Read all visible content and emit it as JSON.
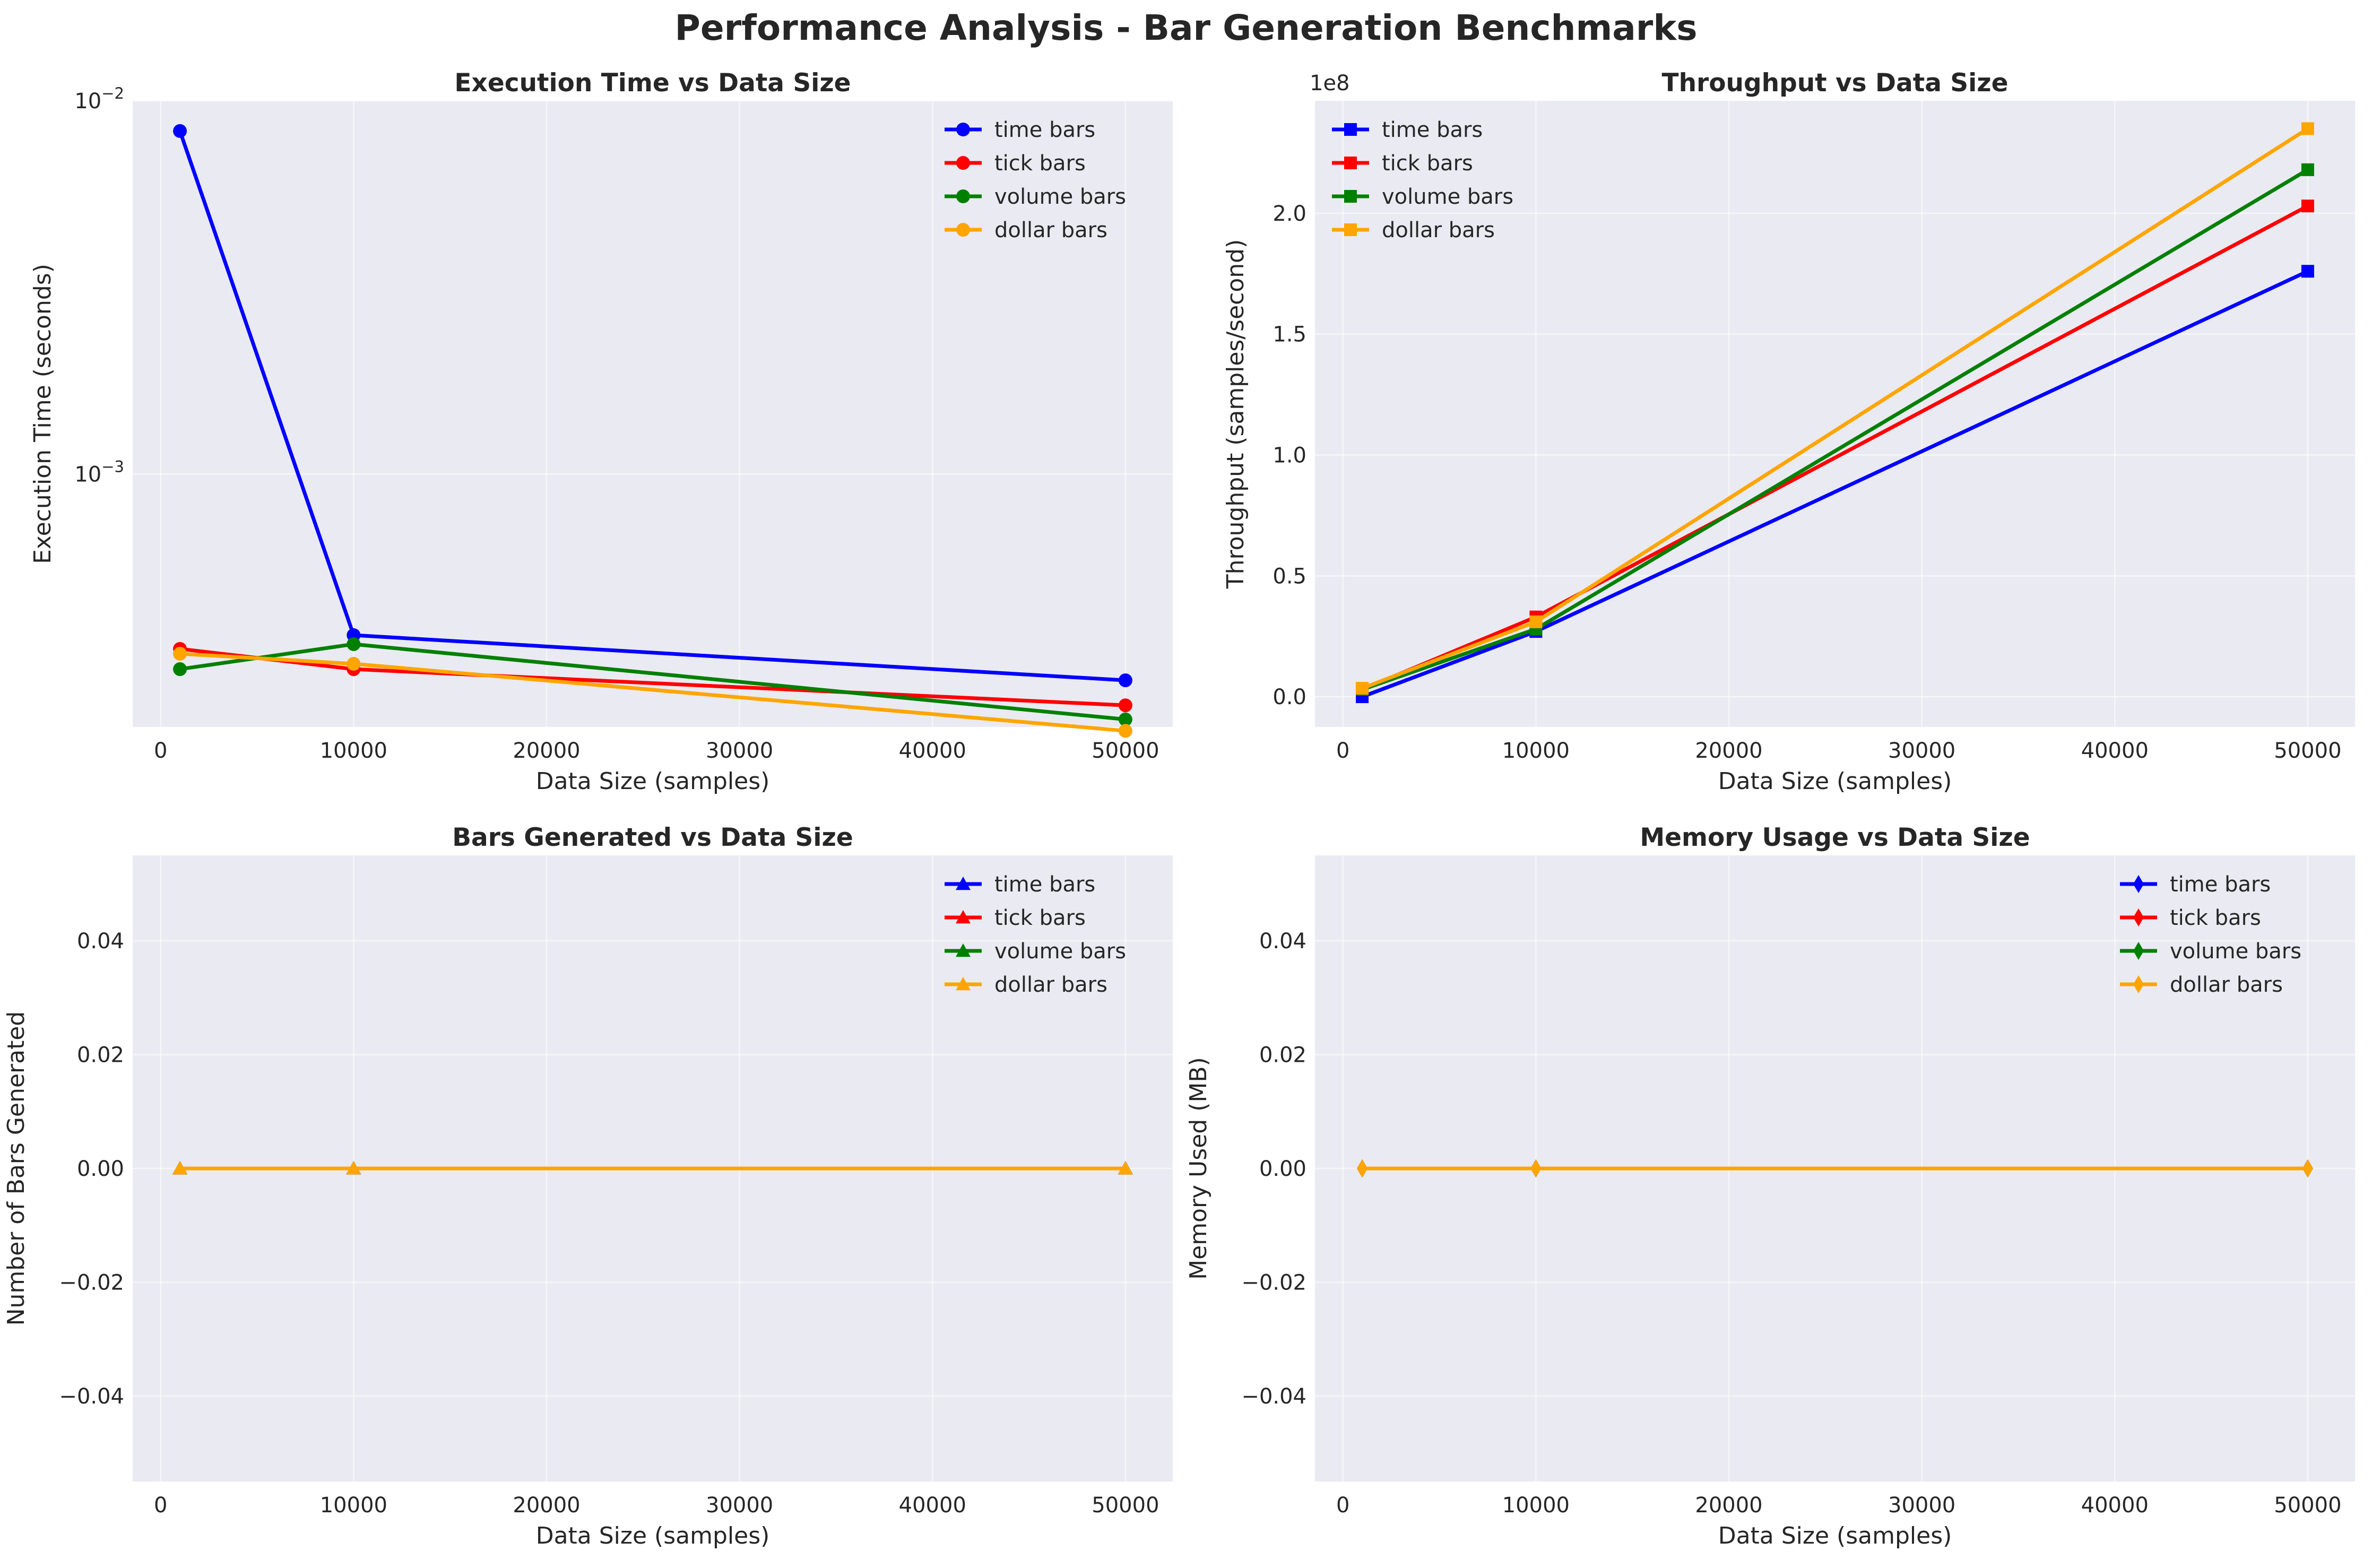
{
  "figure_title": "Performance Analysis - Bar Generation Benchmarks",
  "colors": {
    "background": "#ffffff",
    "axes_face": "#eaeaf2",
    "grid": "#ffffff",
    "text": "#262626",
    "time bars": "#0000ff",
    "tick bars": "#ff0000",
    "volume bars": "#008000",
    "dollar bars": "#ffa500"
  },
  "chart_data": [
    {
      "type": "line",
      "title": "Execution Time vs Data Size",
      "xlabel": "Data Size (samples)",
      "ylabel": "Execution Time (seconds)",
      "yscale": "log",
      "xlim": [
        -1450,
        52450
      ],
      "ylim": [
        0.00021,
        0.01
      ],
      "xticks": [
        0,
        10000,
        20000,
        30000,
        40000,
        50000
      ],
      "yticks": [
        0.001,
        0.01
      ],
      "ytick_labels": [
        {
          "base": "10",
          "exp": "−3"
        },
        {
          "base": "10",
          "exp": "−2"
        }
      ],
      "marker": "circle",
      "legend": "top-right",
      "grid": true,
      "x": [
        1000,
        10000,
        50000
      ],
      "series": [
        {
          "name": "time bars",
          "values": [
            0.0083,
            0.00037,
            0.00028
          ]
        },
        {
          "name": "tick bars",
          "values": [
            0.00034,
            0.0003,
            0.00024
          ]
        },
        {
          "name": "volume bars",
          "values": [
            0.0003,
            0.00035,
            0.00022
          ]
        },
        {
          "name": "dollar bars",
          "values": [
            0.00033,
            0.00031,
            0.000205
          ]
        }
      ]
    },
    {
      "type": "line",
      "title": "Throughput vs Data Size",
      "xlabel": "Data Size (samples)",
      "ylabel": "Throughput (samples/second)",
      "offset_text": "1e8",
      "yscale": "linear",
      "xlim": [
        -1450,
        52450
      ],
      "ylim": [
        -12500000,
        246500000
      ],
      "xticks": [
        0,
        10000,
        20000,
        30000,
        40000,
        50000
      ],
      "yticks": [
        0,
        50000000,
        100000000,
        150000000,
        200000000
      ],
      "ytick_labels": [
        "0.0",
        "0.5",
        "1.0",
        "1.5",
        "2.0"
      ],
      "marker": "square",
      "legend": "top-left",
      "grid": true,
      "x": [
        1000,
        10000,
        50000
      ],
      "series": [
        {
          "name": "time bars",
          "values": [
            0,
            27000000,
            176000000
          ]
        },
        {
          "name": "tick bars",
          "values": [
            3000000,
            33000000,
            203000000
          ]
        },
        {
          "name": "volume bars",
          "values": [
            3000000,
            28000000,
            218000000
          ]
        },
        {
          "name": "dollar bars",
          "values": [
            3500000,
            31000000,
            235000000
          ]
        }
      ]
    },
    {
      "type": "line",
      "title": "Bars Generated vs Data Size",
      "xlabel": "Data Size (samples)",
      "ylabel": "Number of Bars Generated",
      "yscale": "linear",
      "xlim": [
        -1450,
        52450
      ],
      "ylim": [
        -0.055,
        0.055
      ],
      "xticks": [
        0,
        10000,
        20000,
        30000,
        40000,
        50000
      ],
      "yticks": [
        -0.04,
        -0.02,
        0,
        0.02,
        0.04
      ],
      "ytick_labels": [
        "−0.04",
        "−0.02",
        "0.00",
        "0.02",
        "0.04"
      ],
      "marker": "triangle",
      "legend": "top-right",
      "grid": true,
      "x": [
        1000,
        10000,
        50000
      ],
      "series": [
        {
          "name": "time bars",
          "values": [
            0,
            0,
            0
          ]
        },
        {
          "name": "tick bars",
          "values": [
            0,
            0,
            0
          ]
        },
        {
          "name": "volume bars",
          "values": [
            0,
            0,
            0
          ]
        },
        {
          "name": "dollar bars",
          "values": [
            0,
            0,
            0
          ]
        }
      ]
    },
    {
      "type": "line",
      "title": "Memory Usage vs Data Size",
      "xlabel": "Data Size (samples)",
      "ylabel": "Memory Used (MB)",
      "yscale": "linear",
      "xlim": [
        -1450,
        52450
      ],
      "ylim": [
        -0.055,
        0.055
      ],
      "xticks": [
        0,
        10000,
        20000,
        30000,
        40000,
        50000
      ],
      "yticks": [
        -0.04,
        -0.02,
        0,
        0.02,
        0.04
      ],
      "ytick_labels": [
        "−0.04",
        "−0.02",
        "0.00",
        "0.02",
        "0.04"
      ],
      "marker": "thin-diamond",
      "legend": "top-right",
      "grid": true,
      "x": [
        1000,
        10000,
        50000
      ],
      "series": [
        {
          "name": "time bars",
          "values": [
            0,
            0,
            0
          ]
        },
        {
          "name": "tick bars",
          "values": [
            0,
            0,
            0
          ]
        },
        {
          "name": "volume bars",
          "values": [
            0,
            0,
            0
          ]
        },
        {
          "name": "dollar bars",
          "values": [
            0,
            0,
            0
          ]
        }
      ]
    }
  ]
}
